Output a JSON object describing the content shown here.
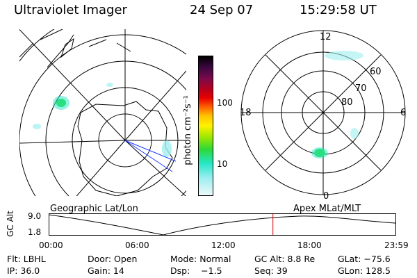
{
  "header": {
    "title": "Ultraviolet Imager",
    "date": "24 Sep 07",
    "time": "15:29:58 UT"
  },
  "left_panel": {
    "caption": "Geographic Lat/Lon"
  },
  "right_panel": {
    "caption": "Apex MLat/MLT",
    "mlt_labels": {
      "top": "12",
      "bottom": "0",
      "left": "18",
      "right": "6"
    },
    "lat_labels": [
      "60",
      "70",
      "80"
    ]
  },
  "colorbar": {
    "label": "photon cm⁻²s⁻¹",
    "ticks": [
      "100",
      "10"
    ],
    "colors": [
      "#000000",
      "#3a0840",
      "#7a0a4a",
      "#b8001c",
      "#e80000",
      "#ff6a00",
      "#ffc400",
      "#fff200",
      "#9ee800",
      "#2ed838",
      "#26e6c8",
      "#a0eef0",
      "#eef9fa"
    ]
  },
  "altitude_plot": {
    "ylabel": "GC Alt",
    "y_ticks": [
      "9.0",
      "1.8"
    ],
    "x_ticks": [
      "00:00",
      "06:00",
      "12:00",
      "18:00",
      "23:59"
    ],
    "current_time_fraction": 0.646
  },
  "info": {
    "flt": "Flt: LBHL",
    "door": "Door: Open",
    "mode": "Mode: Normal",
    "gc_alt": "GC Alt: 8.8 Re",
    "glat": "GLat: −75.6",
    "ip": "IP: 36.0",
    "gain": "Gain: 14",
    "dsp": "Dsp:    −1.5",
    "seq": "Seq: 39",
    "glon": "GLon: 128.5"
  }
}
